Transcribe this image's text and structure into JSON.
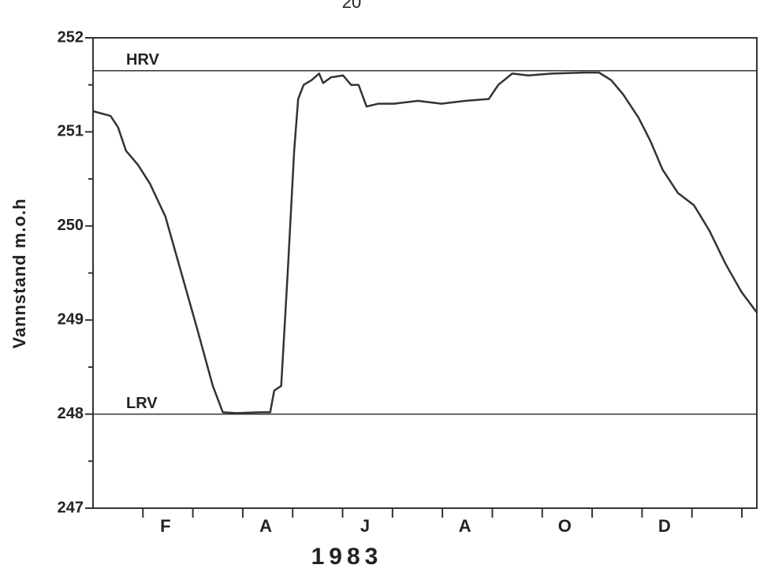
{
  "chart_data": {
    "type": "line",
    "page_number": "20",
    "title": "1983",
    "ylabel": "Vannstand   m.o.h",
    "xlim": [
      0,
      13.3
    ],
    "xticks": [
      1,
      2,
      3,
      4,
      5,
      6,
      7,
      8,
      9,
      10,
      11,
      12,
      13
    ],
    "xlabels": [
      {
        "value": 1.45,
        "label": "F"
      },
      {
        "value": 3.46,
        "label": "A"
      },
      {
        "value": 5.45,
        "label": "J"
      },
      {
        "value": 7.45,
        "label": "A"
      },
      {
        "value": 9.45,
        "label": "O"
      },
      {
        "value": 11.45,
        "label": "D"
      }
    ],
    "ylim": [
      247,
      252
    ],
    "yticks": [
      247,
      248,
      249,
      250,
      251,
      252
    ],
    "yticks_minor": [
      247.5,
      248.5,
      249.5,
      250.5,
      251.5
    ],
    "hlines": [
      {
        "label": "HRV",
        "value": 251.65
      },
      {
        "label": "LRV",
        "value": 248
      }
    ],
    "series": [
      {
        "color": "#333333",
        "x": [
          0,
          0.35,
          0.5,
          0.66,
          0.9,
          1.14,
          1.45,
          1.77,
          2.09,
          2.4,
          2.6,
          2.87,
          3.35,
          3.55,
          3.63,
          3.77,
          3.9,
          4.03,
          4.11,
          4.22,
          4.38,
          4.53,
          4.61,
          4.77,
          5.01,
          5.17,
          5.32,
          5.48,
          5.72,
          6.03,
          6.51,
          6.98,
          7.46,
          7.93,
          8.12,
          8.4,
          8.72,
          9.19,
          9.83,
          10.14,
          10.38,
          10.62,
          10.93,
          11.17,
          11.41,
          11.72,
          12.04,
          12.35,
          12.67,
          12.99,
          13.3
        ],
        "values": [
          251.22,
          251.17,
          251.05,
          250.8,
          250.65,
          250.45,
          250.1,
          249.5,
          248.9,
          248.3,
          248.02,
          248.01,
          248.02,
          248.02,
          248.25,
          248.3,
          249.5,
          250.8,
          251.35,
          251.5,
          251.55,
          251.62,
          251.52,
          251.58,
          251.6,
          251.5,
          251.5,
          251.27,
          251.3,
          251.3,
          251.33,
          251.3,
          251.33,
          251.35,
          251.5,
          251.62,
          251.6,
          251.62,
          251.63,
          251.63,
          251.55,
          251.4,
          251.15,
          250.9,
          250.6,
          250.35,
          250.22,
          249.95,
          249.6,
          249.3,
          249.08
        ]
      }
    ]
  }
}
